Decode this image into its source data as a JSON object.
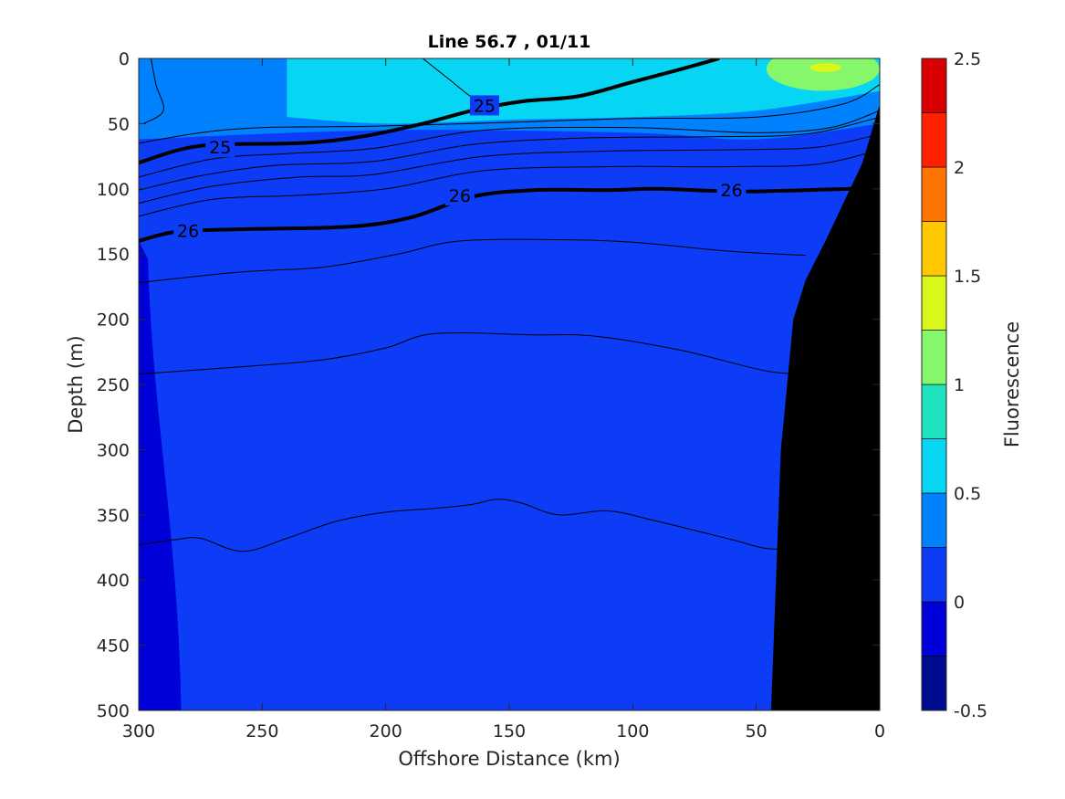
{
  "chart_data": {
    "type": "contour",
    "title": "Line 56.7 , 01/11",
    "xlabel": "Offshore Distance (km)",
    "ylabel": "Depth (m)",
    "xlim": [
      300,
      0
    ],
    "ylim": [
      0,
      500
    ],
    "x_reversed": true,
    "y_reversed": true,
    "xticks": [
      "300",
      "250",
      "200",
      "150",
      "100",
      "50",
      "0"
    ],
    "yticks": [
      "0",
      "50",
      "100",
      "150",
      "200",
      "250",
      "300",
      "350",
      "400",
      "450",
      "500"
    ],
    "colorbar": {
      "label": "Fluorescence",
      "range": [
        -0.5,
        2.5
      ],
      "ticks": [
        "2.5",
        "2",
        "1.5",
        "1",
        "0.5",
        "0",
        "-0.5"
      ],
      "levels": [
        -0.5,
        -0.25,
        0,
        0.25,
        0.5,
        0.75,
        1,
        1.25,
        1.5,
        1.75,
        2,
        2.25,
        2.5
      ],
      "colors": [
        "#000c8f",
        "#0000d8",
        "#0d3cf7",
        "#0082ff",
        "#06d5f4",
        "#1fe2be",
        "#86f76a",
        "#d9f71a",
        "#ffc800",
        "#ff7300",
        "#ff2100",
        "#d80000"
      ]
    },
    "fill_regions": [
      {
        "level": 0.125,
        "name": "surface layer",
        "color": "#0082ff",
        "depth_bottom": [
          [
            300,
            62
          ],
          [
            200,
            55
          ],
          [
            100,
            57
          ],
          [
            50,
            62
          ],
          [
            0,
            50
          ]
        ]
      },
      {
        "level": 0.375,
        "name": "upper maximum",
        "color": "#06d5f4",
        "depth_bottom": [
          [
            240,
            45
          ],
          [
            200,
            50
          ],
          [
            150,
            47
          ],
          [
            100,
            45
          ],
          [
            50,
            40
          ],
          [
            0,
            25
          ]
        ]
      },
      {
        "level": 0.875,
        "name": "nearshore patch",
        "color": "#86f76a",
        "center": [
          23,
          8
        ]
      },
      {
        "level": 1.375,
        "name": "nearshore peak",
        "color": "#d9f71a",
        "center": [
          22,
          7
        ]
      },
      {
        "level": -0.125,
        "name": "offshore deep column",
        "color": "#0000d8",
        "x_range": [
          300,
          285
        ],
        "depth_range": [
          140,
          500
        ]
      }
    ],
    "density_contours": [
      {
        "value": 25,
        "labeled": true,
        "points": [
          [
            300,
            80
          ],
          [
            275,
            67
          ],
          [
            235,
            65
          ],
          [
            210,
            60
          ],
          [
            185,
            50
          ],
          [
            165,
            40
          ],
          [
            145,
            33
          ],
          [
            122,
            29
          ],
          [
            100,
            18
          ],
          [
            80,
            8
          ],
          [
            65,
            0
          ]
        ]
      },
      {
        "value": 26,
        "labeled": true,
        "points": [
          [
            300,
            140
          ],
          [
            285,
            133
          ],
          [
            260,
            131
          ],
          [
            215,
            129
          ],
          [
            190,
            122
          ],
          [
            165,
            106
          ],
          [
            140,
            101
          ],
          [
            110,
            101
          ],
          [
            90,
            100
          ],
          [
            55,
            102
          ],
          [
            10,
            100
          ],
          [
            0,
            101
          ]
        ]
      },
      {
        "value": null,
        "labeled": false,
        "points": [
          [
            300,
            65
          ],
          [
            275,
            57
          ],
          [
            250,
            53
          ],
          [
            205,
            52
          ],
          [
            150,
            49
          ],
          [
            100,
            46
          ],
          [
            50,
            45
          ],
          [
            15,
            35
          ],
          [
            0,
            20
          ]
        ]
      },
      {
        "value": null,
        "labeled": false,
        "points": [
          [
            300,
            91
          ],
          [
            270,
            77
          ],
          [
            240,
            73
          ],
          [
            205,
            69
          ],
          [
            160,
            55
          ],
          [
            100,
            53
          ],
          [
            50,
            57
          ],
          [
            20,
            53
          ],
          [
            0,
            40
          ]
        ]
      },
      {
        "value": null,
        "labeled": false,
        "points": [
          [
            300,
            101
          ],
          [
            275,
            90
          ],
          [
            245,
            82
          ],
          [
            205,
            79
          ],
          [
            165,
            66
          ],
          [
            120,
            61
          ],
          [
            70,
            60
          ],
          [
            30,
            58
          ],
          [
            0,
            45
          ]
        ]
      },
      {
        "value": null,
        "labeled": false,
        "points": [
          [
            300,
            111
          ],
          [
            270,
            98
          ],
          [
            235,
            91
          ],
          [
            205,
            89
          ],
          [
            160,
            75
          ],
          [
            110,
            71
          ],
          [
            60,
            70
          ],
          [
            25,
            68
          ],
          [
            0,
            58
          ]
        ]
      },
      {
        "value": null,
        "labeled": false,
        "points": [
          [
            300,
            121
          ],
          [
            270,
            108
          ],
          [
            235,
            105
          ],
          [
            200,
            100
          ],
          [
            160,
            86
          ],
          [
            110,
            83
          ],
          [
            60,
            83
          ],
          [
            25,
            81
          ],
          [
            0,
            70
          ]
        ]
      },
      {
        "value": null,
        "labeled": false,
        "points": [
          [
            300,
            172
          ],
          [
            260,
            164
          ],
          [
            225,
            160
          ],
          [
            195,
            150
          ],
          [
            170,
            140
          ],
          [
            130,
            139
          ],
          [
            100,
            141
          ],
          [
            60,
            148
          ],
          [
            30,
            151
          ]
        ]
      },
      {
        "value": null,
        "labeled": false,
        "points": [
          [
            300,
            242
          ],
          [
            255,
            236
          ],
          [
            225,
            231
          ],
          [
            200,
            222
          ],
          [
            180,
            211
          ],
          [
            140,
            212
          ],
          [
            115,
            213
          ],
          [
            80,
            224
          ],
          [
            45,
            240
          ],
          [
            27,
            241
          ]
        ]
      },
      {
        "value": null,
        "labeled": false,
        "points": [
          [
            300,
            373
          ],
          [
            285,
            369
          ],
          [
            275,
            368
          ],
          [
            258,
            378
          ],
          [
            240,
            368
          ],
          [
            220,
            355
          ],
          [
            200,
            348
          ],
          [
            180,
            345
          ],
          [
            165,
            342
          ],
          [
            155,
            338
          ],
          [
            145,
            341
          ],
          [
            130,
            350
          ],
          [
            110,
            347
          ],
          [
            90,
            355
          ],
          [
            60,
            369
          ],
          [
            45,
            376
          ],
          [
            30,
            375
          ]
        ]
      }
    ],
    "thin_lines": [
      {
        "name": "offshore surface line",
        "points": [
          [
            295,
            0
          ],
          [
            293,
            20
          ],
          [
            290,
            40
          ],
          [
            298,
            50
          ]
        ]
      },
      {
        "name": "surface diagonal",
        "points": [
          [
            185,
            0
          ],
          [
            175,
            15
          ],
          [
            165,
            30
          ],
          [
            155,
            40
          ]
        ]
      }
    ],
    "bottom_mask": {
      "color": "#000000",
      "points": [
        [
          0,
          35
        ],
        [
          7,
          80
        ],
        [
          22,
          140
        ],
        [
          30,
          170
        ],
        [
          35,
          200
        ],
        [
          40,
          300
        ],
        [
          42,
          400
        ],
        [
          44,
          500
        ],
        [
          0,
          500
        ]
      ]
    }
  }
}
